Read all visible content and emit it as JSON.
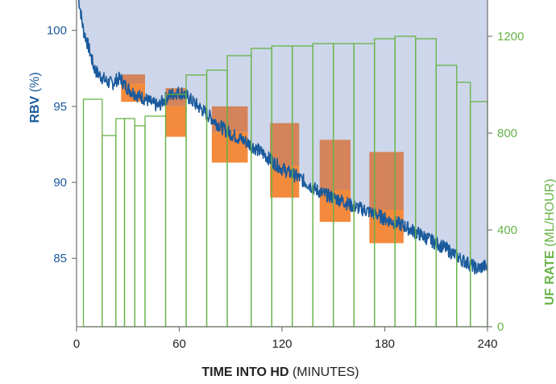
{
  "chart_data": {
    "type": "line",
    "x_axis": {
      "title_bold": "TIME INTO HD",
      "title_rest": " (MINUTES)",
      "range": [
        0,
        240
      ],
      "ticks": [
        0,
        60,
        120,
        180,
        240
      ],
      "tick_labels": [
        "0",
        "60",
        "120",
        "180",
        "240"
      ]
    },
    "left_axis": {
      "title_bold": "RBV",
      "title_rest": " (%)",
      "range": [
        80.5,
        102
      ],
      "ticks": [
        85,
        90,
        95,
        100
      ],
      "tick_labels": [
        "85",
        "90",
        "95",
        "100"
      ]
    },
    "right_axis": {
      "title_bold": "UF RATE",
      "title_rest": " (ML/HOUR)",
      "range": [
        0,
        1350
      ],
      "ticks": [
        0,
        400,
        800,
        1200
      ],
      "tick_labels": [
        "0",
        "400",
        "800",
        "1200"
      ]
    },
    "rbv_series": {
      "color": "#1a5a9c",
      "fill_color": "#cdd6ea",
      "points": [
        [
          1,
          102.2
        ],
        [
          2,
          101.5
        ],
        [
          4,
          100
        ],
        [
          6,
          99.3
        ],
        [
          8,
          98.5
        ],
        [
          10,
          97.6
        ],
        [
          12,
          97.2
        ],
        [
          15,
          96.9
        ],
        [
          18,
          96.6
        ],
        [
          21,
          96.5
        ],
        [
          24,
          96.8
        ],
        [
          26,
          96.8
        ],
        [
          28,
          96.4
        ],
        [
          32,
          96.0
        ],
        [
          36,
          95.7
        ],
        [
          40,
          95.5
        ],
        [
          44,
          95.2
        ],
        [
          48,
          95.0
        ],
        [
          50,
          95.3
        ],
        [
          54,
          95.7
        ],
        [
          58,
          95.9
        ],
        [
          62,
          95.9
        ],
        [
          66,
          95.5
        ],
        [
          70,
          95.1
        ],
        [
          74,
          94.7
        ],
        [
          78,
          94.3
        ],
        [
          82,
          93.9
        ],
        [
          86,
          93.5
        ],
        [
          90,
          93.2
        ],
        [
          95,
          92.9
        ],
        [
          100,
          92.6
        ],
        [
          105,
          92.2
        ],
        [
          110,
          91.8
        ],
        [
          115,
          91.3
        ],
        [
          120,
          90.9
        ],
        [
          125,
          90.6
        ],
        [
          130,
          90.3
        ],
        [
          135,
          89.9
        ],
        [
          140,
          89.5
        ],
        [
          145,
          89.2
        ],
        [
          150,
          89.0
        ],
        [
          155,
          88.8
        ],
        [
          160,
          88.5
        ],
        [
          165,
          88.3
        ],
        [
          170,
          88.1
        ],
        [
          175,
          87.9
        ],
        [
          180,
          87.6
        ],
        [
          185,
          87.4
        ],
        [
          190,
          87.2
        ],
        [
          195,
          86.9
        ],
        [
          200,
          86.6
        ],
        [
          205,
          86.3
        ],
        [
          210,
          86.0
        ],
        [
          215,
          85.7
        ],
        [
          220,
          85.3
        ],
        [
          225,
          84.9
        ],
        [
          230,
          84.6
        ],
        [
          234,
          84.3
        ],
        [
          238,
          84.5
        ],
        [
          240,
          84.3
        ]
      ]
    },
    "rbv_target_bands": {
      "lower_color": "#f48a3c",
      "upper_color": "#d4835a",
      "bands": [
        {
          "x0": 26,
          "x1": 40,
          "lower": [
            95.3,
            96.5
          ],
          "upper": [
            96.5,
            97.1
          ]
        },
        {
          "x0": 52,
          "x1": 64,
          "lower": [
            93.0,
            95.0
          ],
          "upper": [
            95.0,
            96.2
          ]
        },
        {
          "x0": 79,
          "x1": 100,
          "lower": [
            91.3,
            93.3
          ],
          "upper": [
            93.3,
            95.0
          ]
        },
        {
          "x0": 113,
          "x1": 130,
          "lower": [
            89.0,
            91.1
          ],
          "upper": [
            91.1,
            93.9
          ]
        },
        {
          "x0": 142,
          "x1": 160,
          "lower": [
            87.4,
            89.5
          ],
          "upper": [
            89.5,
            92.8
          ]
        },
        {
          "x0": 171,
          "x1": 191,
          "lower": [
            86.0,
            88.2
          ],
          "upper": [
            88.2,
            92.0
          ]
        }
      ]
    },
    "uf_rate_series": {
      "color": "#67b346",
      "steps": [
        {
          "x0": 4,
          "x1": 15,
          "v": 940
        },
        {
          "x0": 15,
          "x1": 23,
          "v": 790
        },
        {
          "x0": 23,
          "x1": 28,
          "v": 860
        },
        {
          "x0": 28,
          "x1": 34,
          "v": 860
        },
        {
          "x0": 34,
          "x1": 40,
          "v": 830
        },
        {
          "x0": 40,
          "x1": 52,
          "v": 870
        },
        {
          "x0": 52,
          "x1": 64,
          "v": 960
        },
        {
          "x0": 64,
          "x1": 76,
          "v": 1040
        },
        {
          "x0": 76,
          "x1": 88,
          "v": 1060
        },
        {
          "x0": 88,
          "x1": 102,
          "v": 1120
        },
        {
          "x0": 102,
          "x1": 114,
          "v": 1150
        },
        {
          "x0": 114,
          "x1": 126,
          "v": 1160
        },
        {
          "x0": 126,
          "x1": 138,
          "v": 1160
        },
        {
          "x0": 138,
          "x1": 150,
          "v": 1170
        },
        {
          "x0": 150,
          "x1": 162,
          "v": 1170
        },
        {
          "x0": 162,
          "x1": 174,
          "v": 1170
        },
        {
          "x0": 174,
          "x1": 186,
          "v": 1190
        },
        {
          "x0": 186,
          "x1": 198,
          "v": 1200
        },
        {
          "x0": 198,
          "x1": 210,
          "v": 1190
        },
        {
          "x0": 210,
          "x1": 222,
          "v": 1080
        },
        {
          "x0": 222,
          "x1": 230,
          "v": 1010
        },
        {
          "x0": 230,
          "x1": 240,
          "v": 930
        }
      ]
    }
  }
}
